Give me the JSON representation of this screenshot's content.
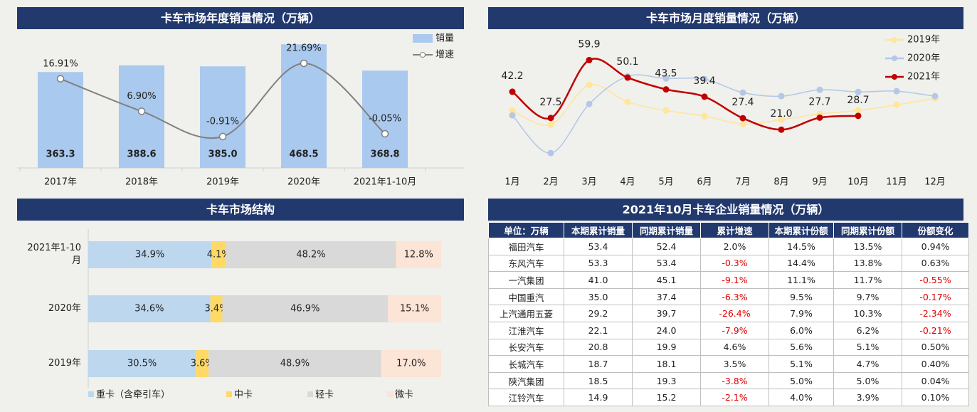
{
  "chart_data": [
    {
      "type": "combo",
      "title": "卡车市场年度销量情况（万辆）",
      "categories": [
        "2017年",
        "2018年",
        "2019年",
        "2020年",
        "2021年1-10月"
      ],
      "series": [
        {
          "name": "销量",
          "type": "bar",
          "color": "#a9c9ee",
          "values": [
            363.3,
            388.6,
            385.0,
            468.5,
            368.8
          ],
          "value_labels": [
            "363.3",
            "388.6",
            "385.0",
            "468.5",
            "368.8"
          ]
        },
        {
          "name": "增速",
          "type": "line",
          "axis": "y2",
          "color": "#808080",
          "values": [
            16.91,
            6.9,
            -0.91,
            21.69,
            -0.05
          ],
          "value_labels": [
            "16.91%",
            "6.90%",
            "-0.91%",
            "21.69%",
            "-0.05%"
          ]
        }
      ],
      "ylim": [
        0,
        480
      ],
      "y2lim": [
        -10.6,
        28.5
      ],
      "legend": "top-right"
    },
    {
      "type": "line",
      "title": "卡车市场月度销量情况（万辆）",
      "categories": [
        "1月",
        "2月",
        "3月",
        "4月",
        "5月",
        "6月",
        "7月",
        "8月",
        "9月",
        "10月",
        "11月",
        "12月"
      ],
      "series": [
        {
          "name": "2019年",
          "color": "#ffe699",
          "values": [
            31.7,
            23.8,
            46.0,
            36.5,
            31.7,
            28.6,
            24.2,
            26.6,
            29.8,
            31.7,
            34.9,
            38.5
          ]
        },
        {
          "name": "2020年",
          "color": "#b4c7e7",
          "values": [
            29.0,
            7.9,
            35.3,
            50.8,
            49.6,
            49.2,
            41.7,
            39.7,
            43.3,
            42.1,
            42.5,
            39.7
          ]
        },
        {
          "name": "2021年",
          "color": "#c00000",
          "values": [
            42.2,
            27.5,
            59.9,
            50.1,
            43.5,
            39.4,
            27.4,
            21.0,
            27.7,
            28.7,
            null,
            null
          ],
          "value_labels": [
            "42.2",
            "27.5",
            "59.9",
            "50.1",
            "43.5",
            "39.4",
            "27.4",
            "21.0",
            "27.7",
            "28.7",
            null,
            null
          ]
        }
      ],
      "ylim": [
        0,
        70
      ],
      "legend": "top-right"
    },
    {
      "type": "barh",
      "stacked": true,
      "title": "卡车市场结构",
      "categories": [
        "2021年1-10月",
        "2020年",
        "2019年"
      ],
      "series": [
        {
          "name": "重卡（含牵引车）",
          "color": "#bdd7ee",
          "values": [
            34.9,
            34.6,
            30.5
          ],
          "value_labels": [
            "34.9%",
            "34.6%",
            "30.5%"
          ]
        },
        {
          "name": "中卡",
          "color": "#ffd966",
          "values": [
            4.1,
            3.4,
            3.6
          ],
          "value_labels": [
            "4.1%",
            "3.4%",
            "3.6%"
          ]
        },
        {
          "name": "轻卡",
          "color": "#d9d9d9",
          "values": [
            48.2,
            46.9,
            48.9
          ],
          "value_labels": [
            "48.2%",
            "46.9%",
            "48.9%"
          ]
        },
        {
          "name": "微卡",
          "color": "#fce4d6",
          "values": [
            12.8,
            15.1,
            17.0
          ],
          "value_labels": [
            "12.8%",
            "15.1%",
            "17.0%"
          ]
        }
      ],
      "xlim": [
        0,
        100
      ],
      "legend": "bottom"
    }
  ],
  "table": {
    "title": "2021年10月卡车企业销量情况（万辆）",
    "header": [
      "单位：万辆",
      "本期累计销量",
      "同期累计销量",
      "累计增速",
      "本期累计份额",
      "同期累计份额",
      "份额变化"
    ],
    "rows": [
      [
        "福田汽车",
        "53.4",
        "52.4",
        "2.0%",
        "14.5%",
        "13.5%",
        "0.94%"
      ],
      [
        "东风汽车",
        "53.3",
        "53.4",
        "-0.3%",
        "14.4%",
        "13.8%",
        "0.63%"
      ],
      [
        "一汽集团",
        "41.0",
        "45.1",
        "-9.1%",
        "11.1%",
        "11.7%",
        "-0.55%"
      ],
      [
        "中国重汽",
        "35.0",
        "37.4",
        "-6.3%",
        "9.5%",
        "9.7%",
        "-0.17%"
      ],
      [
        "上汽通用五菱",
        "29.2",
        "39.7",
        "-26.4%",
        "7.9%",
        "10.3%",
        "-2.34%"
      ],
      [
        "江淮汽车",
        "22.1",
        "24.0",
        "-7.9%",
        "6.0%",
        "6.2%",
        "-0.21%"
      ],
      [
        "长安汽车",
        "20.8",
        "19.9",
        "4.6%",
        "5.6%",
        "5.1%",
        "0.50%"
      ],
      [
        "长城汽车",
        "18.7",
        "18.1",
        "3.5%",
        "5.1%",
        "4.7%",
        "0.40%"
      ],
      [
        "陕汽集团",
        "18.5",
        "19.3",
        "-3.8%",
        "5.0%",
        "5.0%",
        "0.04%"
      ],
      [
        "江铃汽车",
        "14.9",
        "15.2",
        "-2.1%",
        "4.0%",
        "3.9%",
        "0.10%"
      ]
    ]
  }
}
